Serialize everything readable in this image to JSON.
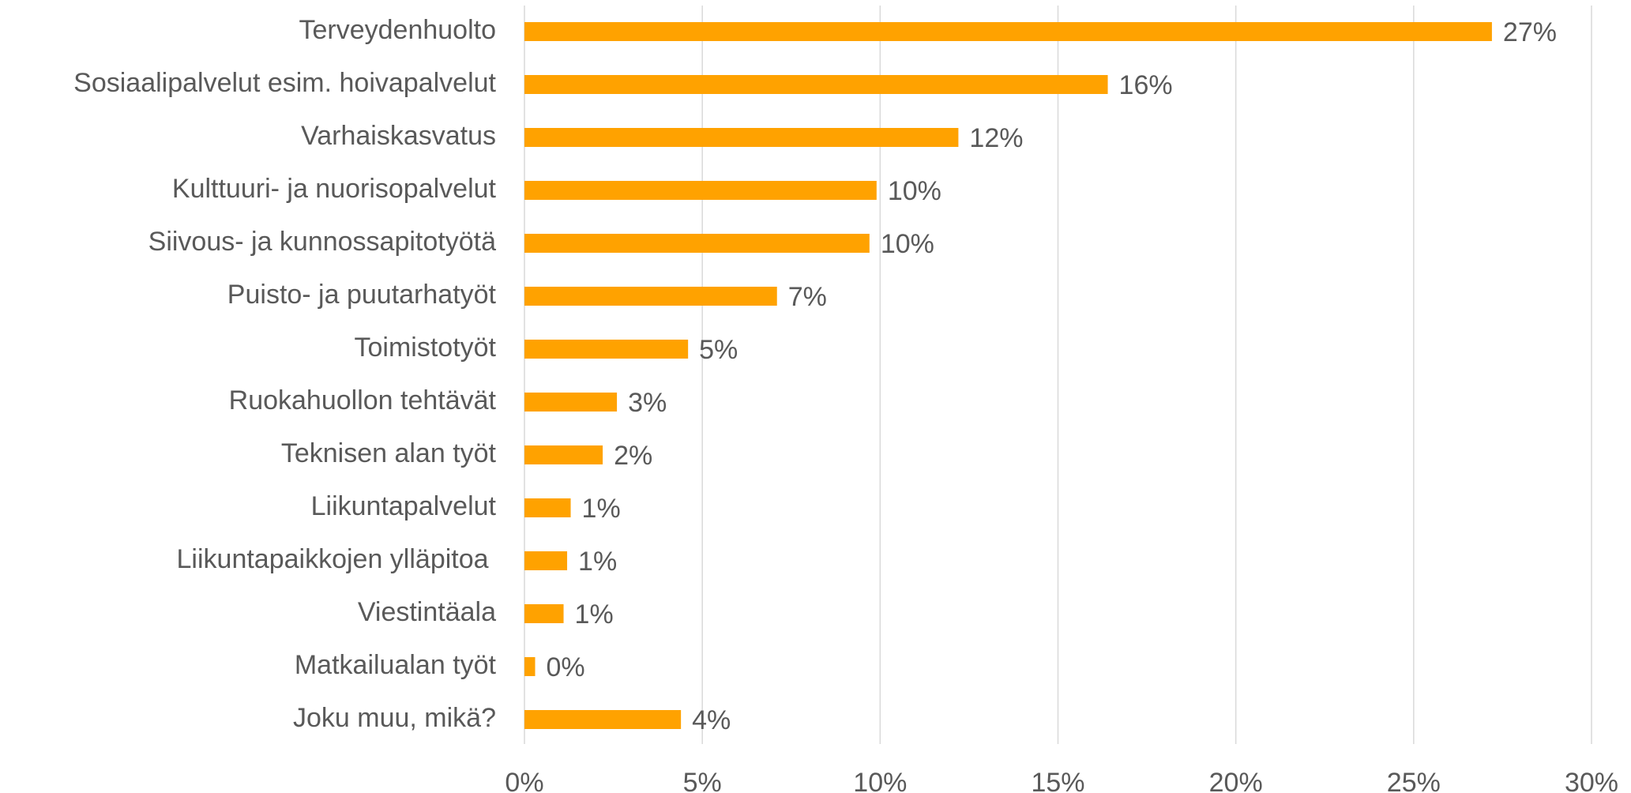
{
  "chart_data": {
    "type": "barh",
    "categories": [
      "Terveydenhuolto",
      "Sosiaalipalvelut esim. hoivapalvelut",
      "Varhaiskasvatus",
      "Kulttuuri- ja nuorisopalvelut",
      "Siivous- ja kunnossapitotyötä",
      "Puisto- ja puutarhatyöt",
      "Toimistotyöt",
      "Ruokahuollon tehtävät",
      "Teknisen alan työt",
      "Liikuntapalvelut",
      "Liikuntapaikkojen ylläpitoa ",
      "Viestintäala",
      "Matkailualan työt",
      "Joku muu, mikä?"
    ],
    "values": [
      27.2,
      16.4,
      12.2,
      9.9,
      9.7,
      7.1,
      4.6,
      2.6,
      2.2,
      1.3,
      1.2,
      1.1,
      0.3,
      4.4
    ],
    "value_labels": [
      "27%",
      "16%",
      "12%",
      "10%",
      "10%",
      "7%",
      "5%",
      "3%",
      "2%",
      "1%",
      "1%",
      "1%",
      "0%",
      "4%"
    ],
    "color": "#ffa200",
    "xlim": [
      0,
      30
    ],
    "xticks": [
      {
        "value": 0,
        "label": "0%"
      },
      {
        "value": 5,
        "label": "5%"
      },
      {
        "value": 10,
        "label": "10%"
      },
      {
        "value": 15,
        "label": "15%"
      },
      {
        "value": 20,
        "label": "20%"
      },
      {
        "value": 25,
        "label": "25%"
      },
      {
        "value": 30,
        "label": "30%"
      }
    ],
    "grid": true
  }
}
